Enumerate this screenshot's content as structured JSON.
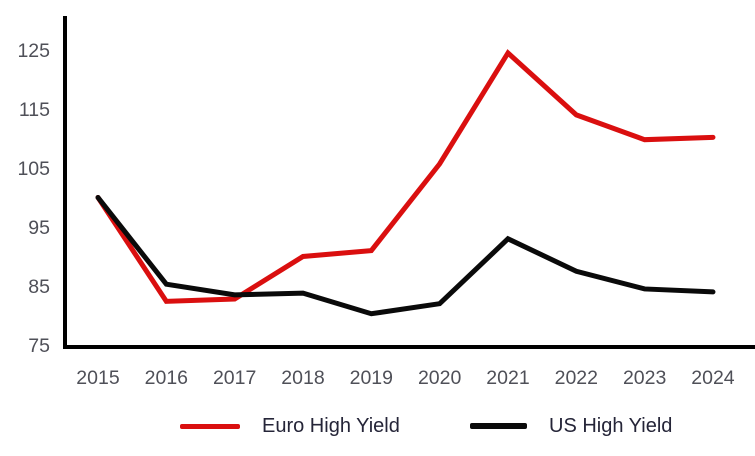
{
  "chart_data": {
    "type": "line",
    "title": "",
    "xlabel": "",
    "ylabel": "",
    "x": [
      2015,
      2016,
      2017,
      2018,
      2019,
      2020,
      2021,
      2022,
      2023,
      2024
    ],
    "series": [
      {
        "name": "Euro High Yield",
        "color": "#da0f0f",
        "values": [
          100,
          82.4,
          82.8,
          90,
          91,
          105.7,
          124.5,
          114,
          109.8,
          110.2
        ]
      },
      {
        "name": "US High Yield",
        "color": "#0a0a0a",
        "values": [
          100,
          85.3,
          83.5,
          83.8,
          80.3,
          82,
          93,
          87.5,
          84.5,
          84
        ]
      }
    ],
    "ylim": [
      75,
      125
    ],
    "yticks": [
      75,
      85,
      95,
      105,
      115,
      125
    ],
    "grid": false,
    "legend_position": "bottom",
    "axis_color": "#000000",
    "tick_label_color": "#4f5058",
    "legend_text_color": "#252538"
  }
}
